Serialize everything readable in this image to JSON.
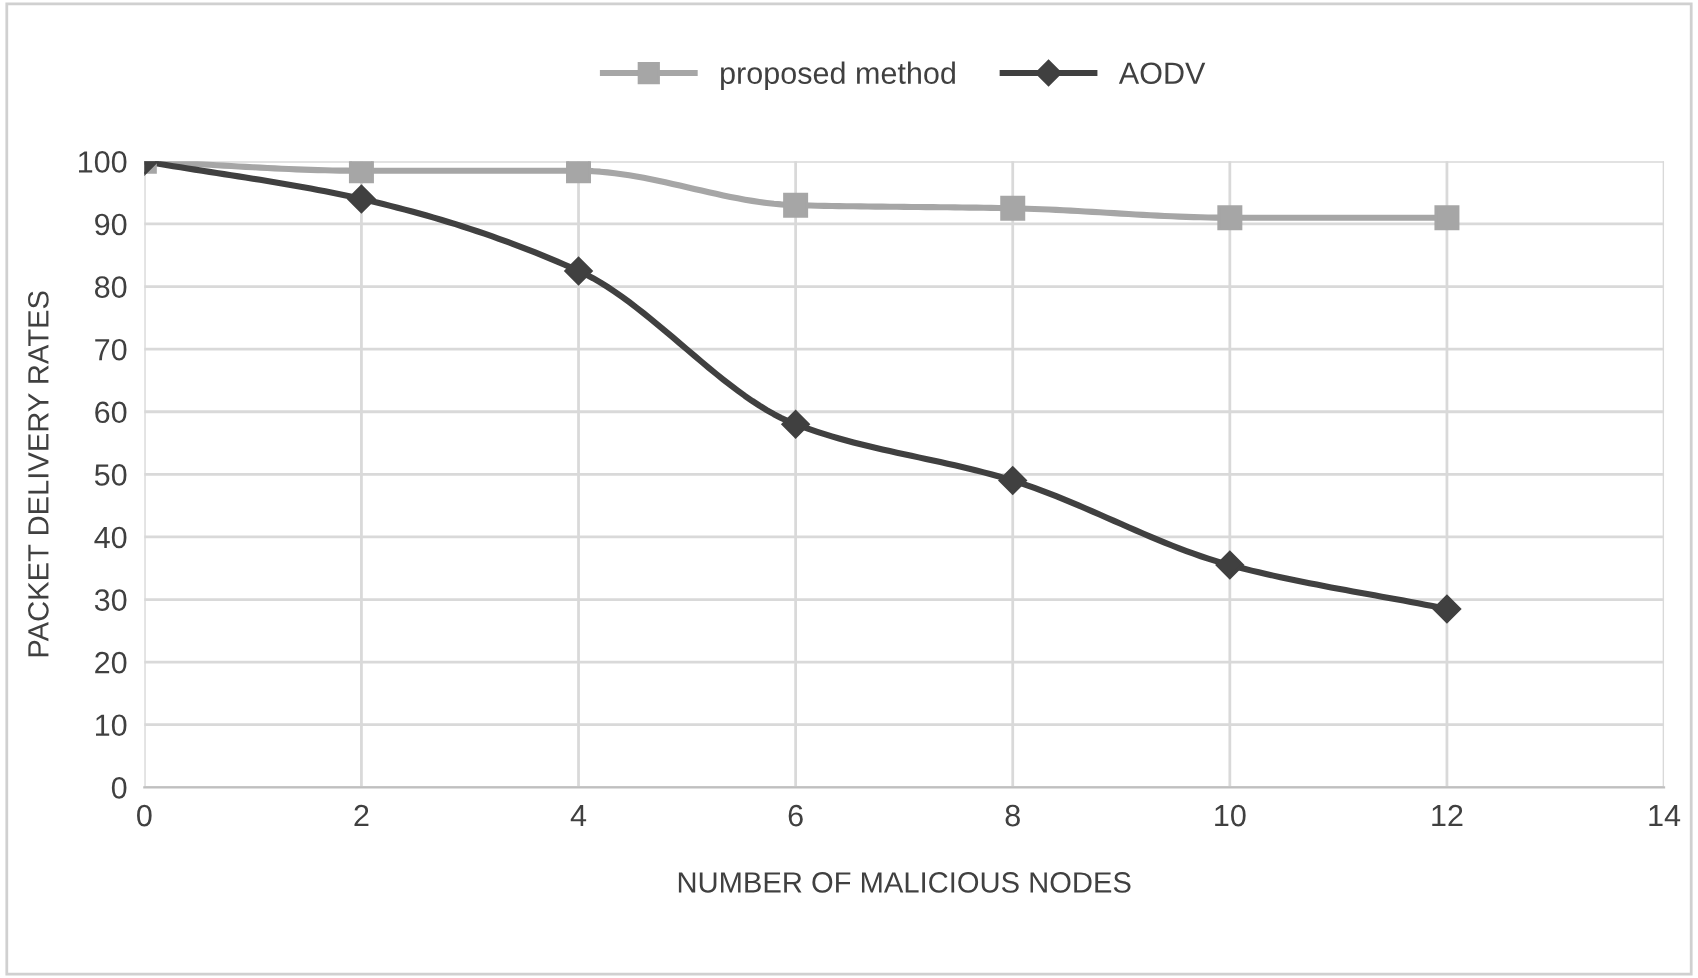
{
  "chart_data": {
    "type": "line",
    "xlabel": "NUMBER OF MALICIOUS NODES",
    "ylabel": "PACKET DELIVERY RATES",
    "x": [
      0,
      2,
      4,
      6,
      8,
      10,
      12
    ],
    "series": [
      {
        "name": "proposed method",
        "color": "#a6a6a6",
        "marker": "square",
        "values": [
          100,
          98.5,
          98.5,
          93,
          92.5,
          91,
          91
        ]
      },
      {
        "name": "AODV",
        "color": "#404040",
        "marker": "diamond",
        "values": [
          100,
          94,
          82.5,
          58,
          49,
          35.5,
          28.5
        ]
      }
    ],
    "xlim": [
      0,
      14
    ],
    "xticks": [
      0,
      2,
      4,
      6,
      8,
      10,
      12,
      14
    ],
    "ylim": [
      0,
      100
    ],
    "yticks": [
      0,
      10,
      20,
      30,
      40,
      50,
      60,
      70,
      80,
      90,
      100
    ],
    "grid": true,
    "legend": "top",
    "line_style": "solid"
  }
}
